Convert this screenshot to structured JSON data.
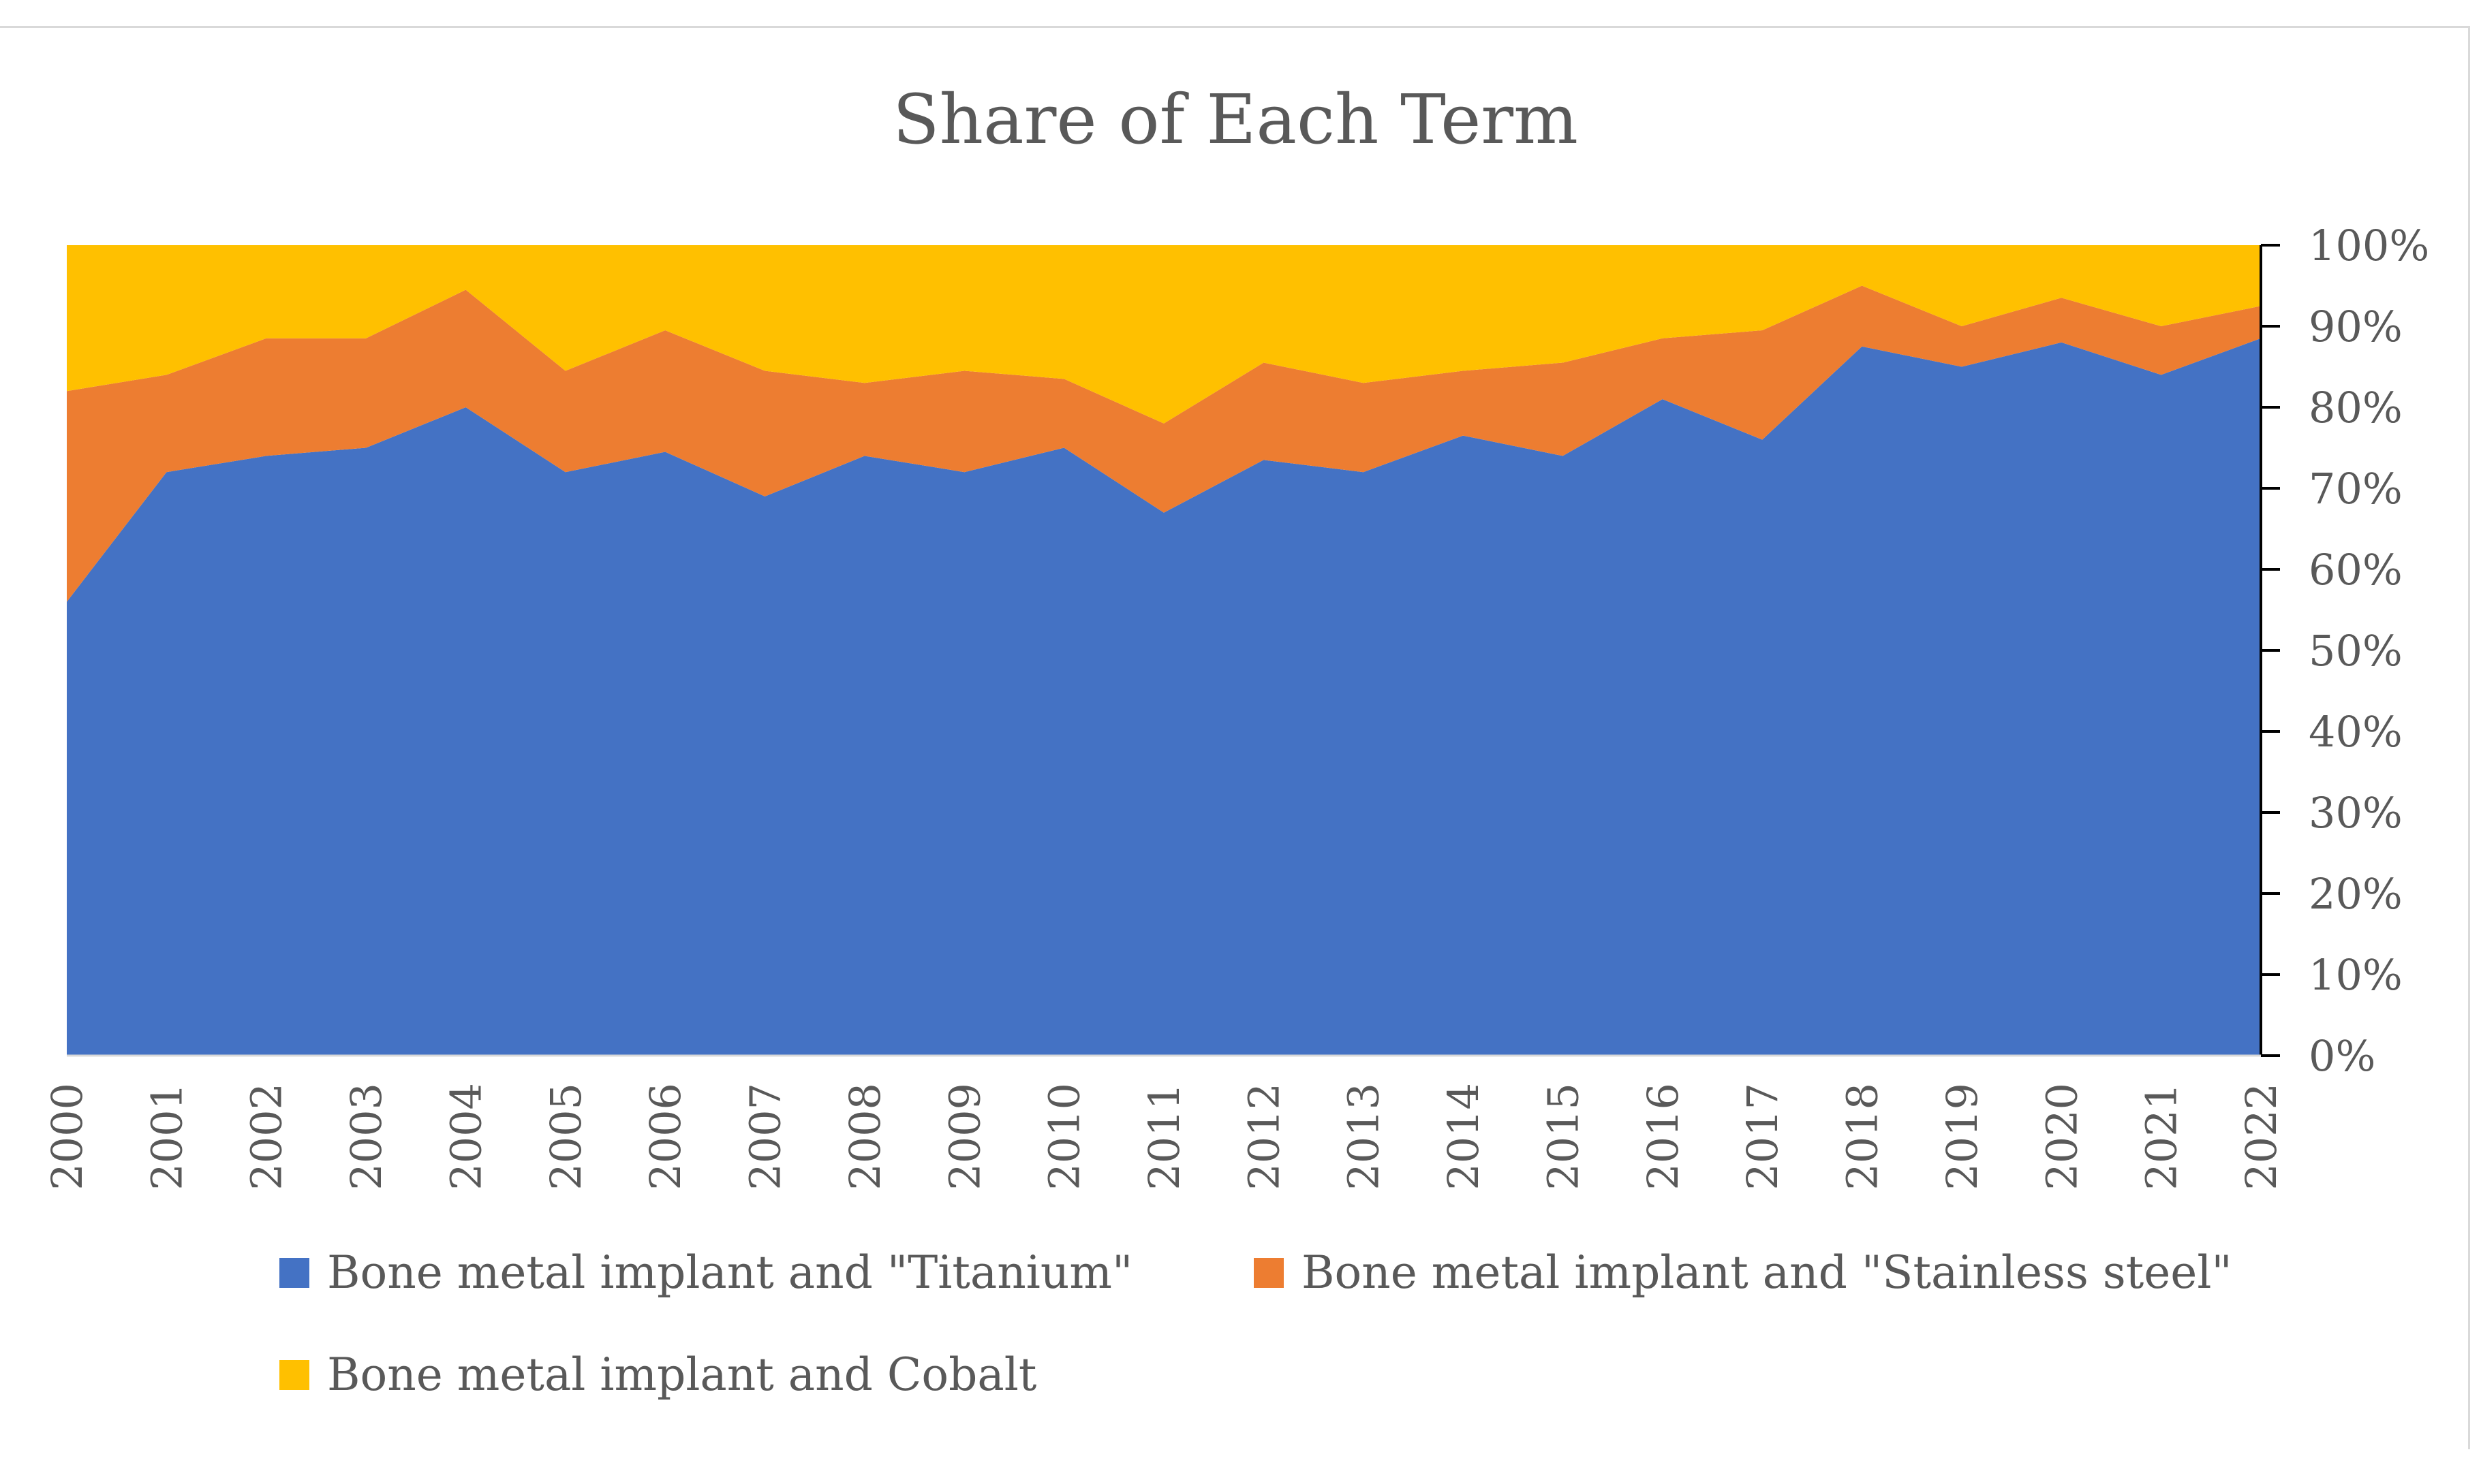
{
  "chart_data": {
    "type": "area",
    "stacked": "percent",
    "title": "Share of Each Term",
    "xlabel": "",
    "ylabel": "",
    "ylim": [
      0,
      100
    ],
    "y_tick_labels": [
      "0%",
      "10%",
      "20%",
      "30%",
      "40%",
      "50%",
      "60%",
      "70%",
      "80%",
      "90%",
      "100%"
    ],
    "y_axis_side": "right",
    "legend_position": "bottom",
    "categories": [
      "2000",
      "2001",
      "2002",
      "2003",
      "2004",
      "2005",
      "2006",
      "2007",
      "2008",
      "2009",
      "2010",
      "2011",
      "2012",
      "2013",
      "2014",
      "2015",
      "2016",
      "2017",
      "2018",
      "2019",
      "2020",
      "2021",
      "2022"
    ],
    "series": [
      {
        "name": "Bone metal implant and \"Titanium\"",
        "color": "#4472c4",
        "values": [
          56,
          72,
          74,
          75,
          80,
          72,
          74.5,
          69,
          74,
          72,
          75,
          67,
          73.5,
          72,
          76.5,
          74,
          81,
          76,
          87.5,
          85,
          88,
          84,
          88.5
        ]
      },
      {
        "name": "Bone metal implant and \"Stainless steel\"",
        "color": "#ed7d31",
        "values": [
          26,
          12,
          14.5,
          13.5,
          14.5,
          12.5,
          15,
          15.5,
          9,
          12.5,
          8.5,
          11,
          12,
          11,
          8,
          11.5,
          7.5,
          13.5,
          7.5,
          5,
          5.5,
          6,
          4
        ]
      },
      {
        "name": "Bone metal implant and Cobalt",
        "color": "#ffc000",
        "values": [
          18,
          16,
          11.5,
          11.5,
          5.5,
          15.5,
          10.5,
          15.5,
          17,
          15.5,
          16.5,
          22,
          14.5,
          17,
          15.5,
          14.5,
          11.5,
          10.5,
          5,
          10,
          6.5,
          10,
          7.5
        ]
      }
    ]
  }
}
